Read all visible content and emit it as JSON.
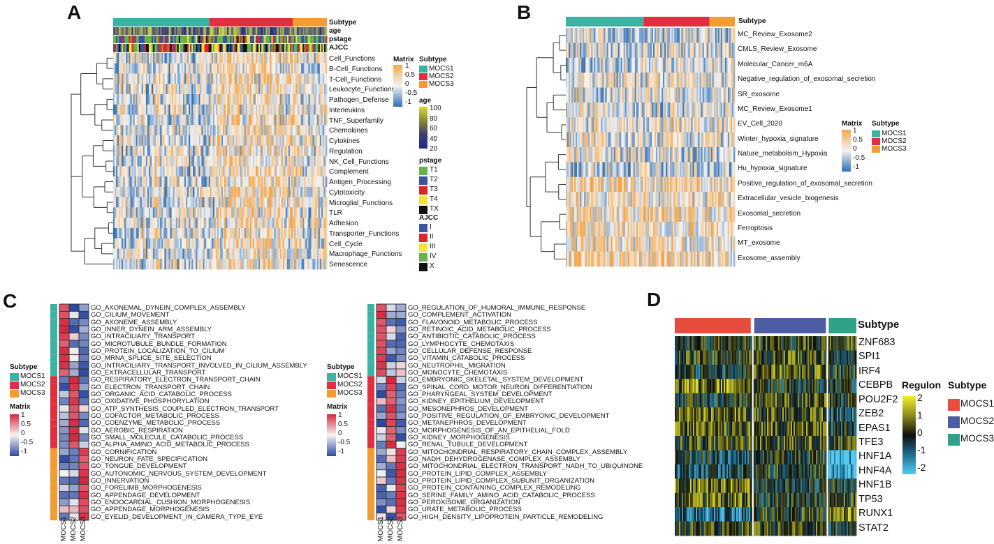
{
  "colors": {
    "mocs1": "#3bb3a3",
    "mocs2": "#e0303f",
    "mocs3": "#f39c31",
    "d_mocs1": "#e84c3d",
    "d_mocs2": "#4c5da4",
    "d_mocs3": "#2ea38a",
    "hm_low": "#2e6fb5",
    "hm_mid": "#f4f4f4",
    "hm_high": "#f4a64a"
  },
  "panelA": {
    "label": "A",
    "annot_labels": [
      "Subtype",
      "age",
      "pstage",
      "AJCC"
    ],
    "rows": [
      "Cell_Functions",
      "B-Cell_Functions",
      "T-Cell_Functions",
      "Leukocyte_Functions",
      "Pathogen_Defense",
      "Interleukins",
      "TNF_Superfamily",
      "Chemokines",
      "Cytokines",
      "Regulation",
      "NK_Cell_Functions",
      "Complement",
      "Antigen_Processing",
      "Cytotoxicity",
      "Microglial_Functions",
      "TLR",
      "Adhesion",
      "Transporter_Functions",
      "Cell_Cycle",
      "Macrophage_Functions",
      "Senescence"
    ],
    "matrix_legend": {
      "title": "Matrix",
      "ticks": [
        "1",
        "0.5",
        "0",
        "-0.5",
        "-1"
      ]
    },
    "subtype_legend": {
      "title": "Subtype",
      "items": [
        "MOCS1",
        "MOCS2",
        "MOCS3"
      ]
    },
    "age_legend": {
      "title": "age",
      "ticks": [
        "100",
        "80",
        "60",
        "40",
        "20"
      ]
    },
    "pstage_legend": {
      "title": "pstage",
      "items": [
        "T1",
        "T2",
        "T3",
        "T4",
        "TX"
      ],
      "colors": [
        "#6ab04c",
        "#3d52a1",
        "#e0242a",
        "#f3e33b",
        "#111111"
      ]
    },
    "ajcc_legend": {
      "title": "AJCC",
      "items": [
        "I",
        "II",
        "III",
        "IV",
        "X"
      ],
      "colors": [
        "#3d52a1",
        "#e0242a",
        "#f3e33b",
        "#6ab04c",
        "#111111"
      ]
    }
  },
  "panelB": {
    "label": "B",
    "annot_label": "Subtype",
    "rows": [
      "MC_Review_Exosome2",
      "CMLS_Review_Exosome",
      "Molecular_Cancer_m6A",
      "Negative_regulation_of_exosomal_secretion",
      "SR_exosome",
      "MC_Review_Exosome1",
      "EV_Cell_2020",
      "Winter_hypoxia_signature",
      "Nature_metabolism_Hypoxia",
      "Hu_hypoxia_signature",
      "Positive_regulation_of_exosomal_secretion",
      "Extracellular_vesicle_biogenesis",
      "Exosomal_secretion",
      "Ferroptosis",
      "MT_exosome",
      "Exosome_assembly"
    ],
    "matrix_legend": {
      "title": "Matrix",
      "ticks": [
        "1",
        "0.5",
        "0",
        "-0.5",
        "-1"
      ]
    },
    "subtype_legend": {
      "title": "Subtype",
      "items": [
        "MOCS1",
        "MOCS2",
        "MOCS3"
      ]
    }
  },
  "panelC": {
    "label": "C",
    "columns": [
      "MOCS1",
      "MOCS2",
      "MOCS3"
    ],
    "left_rows": [
      "GO_AXONEMAL_DYNEIN_COMPLEX_ASSEMBLY",
      "GO_CILIUM_MOVEMENT",
      "GO_AXONEME_ASSEMBLY",
      "GO_INNER_DYNEIN_ARM_ASSEMBLY",
      "GO_INTRACILIARY_TRANSPORT",
      "GO_MICROTUBULE_BUNDLE_FORMATION",
      "GO_PROTEIN_LOCALIZATION_TO_CILIUM",
      "GO_MRNA_SPLICE_SITE_SELECTION",
      "GO_INTRACILIARY_TRANSPORT_INVOLVED_IN_CILIUM_ASSEMBLY",
      "GO_EXTRACELLULAR_TRANSPORT",
      "GO_RESPIRATORY_ELECTRON_TRANSPORT_CHAIN",
      "GO_ELECTRON_TRANSPORT_CHAIN",
      "GO_ORGANIC_ACID_CATABOLIC_PROCESS",
      "GO_OXIDATIVE_PHOSPHORYLATION",
      "GO_ATP_SYNTHESIS_COUPLED_ELECTRON_TRANSPORT",
      "GO_COFACTOR_METABOLIC_PROCESS",
      "GO_COENZYME_METABOLIC_PROCESS",
      "GO_AEROBIC_RESPIRATION",
      "GO_SMALL_MOLECULE_CATABOLIC_PROCESS",
      "GO_ALPHA_AMINO_ACID_METABOLIC_PROCESS",
      "GO_CORNIFICATION",
      "GO_NEURON_FATE_SPECIFICATION",
      "GO_TONGUE_DEVELOPMENT",
      "GO_AUTONOMIC_NERVOUS_SYSTEM_DEVELOPMENT",
      "GO_INNERVATION",
      "GO_FORELIMB_MORPHOGENESIS",
      "GO_APPENDAGE_DEVELOPMENT",
      "GO_ENDOCARDIAL_CUSHION_MORPHOGENESIS",
      "GO_APPENDAGE_MORPHOGENESIS",
      "GO_EYELID_DEVELOPMENT_IN_CAMERA_TYPE_EYE"
    ],
    "right_rows": [
      "GO_REGULATION_OF_HUMORAL_IMMUNE_RESPONSE",
      "GO_COMPLEMENT_ACTIVATION",
      "GO_FLAVONOID_METABOLIC_PROCESS",
      "GO_RETINOIC_ACID_METABOLIC_PROCESS",
      "GO_ANTIBIOTIC_CATABOLIC_PROCESS",
      "GO_LYMPHOCYTE_CHEMOTAXIS",
      "GO_CELLULAR_DEFENSE_RESPONSE",
      "GO_VITAMIN_CATABOLIC_PROCESS",
      "GO_NEUTROPHIL_MIGRATION",
      "GO_MONOCYTE_CHEMOTAXIS",
      "GO_EMBRYONIC_SKELETAL_SYSTEM_DEVELOPMENT",
      "GO_SPINAL_CORD_MOTOR_NEURON_DIFFERENTIATION",
      "GO_PHARYNGEAL_SYSTEM_DEVELOPMENT",
      "GO_KIDNEY_EPITHELIUM_DEVELOPMENT",
      "GO_MESONEPHROS_DEVELOPMENT",
      "GO_POSITIVE_REGULATION_OF_EMBRYONIC_DEVELOPMENT",
      "GO_METANEPHROS_DEVELOPMENT",
      "GO_MORPHOGENESIS_OF_AN_EPITHELIAL_FOLD",
      "GO_KIDNEY_MORPHOGENESIS",
      "GO_RENAL_TUBULE_DEVELOPMENT",
      "GO_MITOCHONDRIAL_RESPIRATORY_CHAIN_COMPLEX_ASSEMBLY",
      "GO_NADH_DEHYDROGENASE_COMPLEX_ASSEMBLY",
      "GO_MITOCHONDRIAL_ELECTRON_TRANSPORT_NADH_TO_UBIQUINONE",
      "GO_PROTEIN_LIPID_COMPLEX_ASSEMBLY",
      "GO_PROTEIN_LIPID_COMPLEX_SUBUNIT_ORGANIZATION",
      "GO_PROTEIN_CONTAINING_COMPLEX_REMODELING",
      "GO_SERINE_FAMILY_AMINO_ACID_CATABOLIC_PROCESS",
      "GO_PEROXISOME_ORGANIZATION",
      "GO_URATE_METABOLIC_PROCESS",
      "GO_HIGH_DENSITY_LIPOPROTEIN_PARTICLE_REMODELING"
    ],
    "subtype_legend": {
      "title": "Subtype",
      "items": [
        "MOCS1",
        "MOCS2",
        "MOCS3"
      ]
    },
    "matrix_legend": {
      "title": "Matrix",
      "ticks": [
        "1",
        "0.5",
        "0",
        "-0.5",
        "-1"
      ]
    }
  },
  "panelD": {
    "label": "D",
    "annot_label": "Subtype",
    "rows": [
      "ZNF683",
      "SPI1",
      "IRF4",
      "CEBPB",
      "POU2F2",
      "ZEB2",
      "EPAS1",
      "TFE3",
      "HNF1A",
      "HNF4A",
      "HNF1B",
      "TP53",
      "RUNX1",
      "STAT2"
    ],
    "regulon_legend": {
      "title": "Regulon",
      "ticks": [
        "2",
        "1",
        "0",
        "-1",
        "-2"
      ]
    },
    "subtype_legend": {
      "title": "Subtype",
      "items": [
        "MOCS1",
        "MOCS2",
        "MOCS3"
      ]
    }
  }
}
